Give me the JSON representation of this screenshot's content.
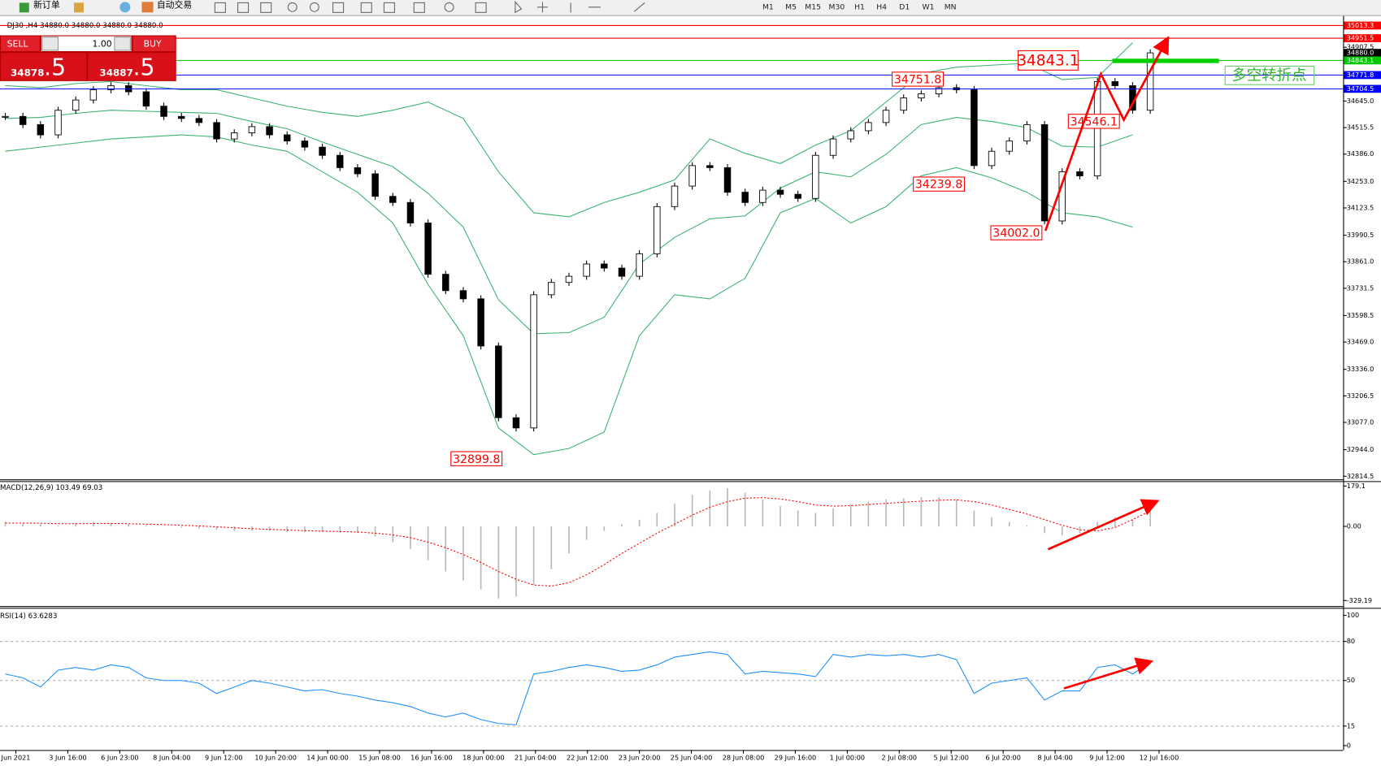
{
  "toolbar": {
    "new_order": "新订单",
    "auto_trading": "自动交易",
    "timeframes": [
      "M1",
      "M5",
      "M15",
      "M30",
      "H1",
      "H4",
      "D1",
      "W1",
      "MN"
    ]
  },
  "trade_panel": {
    "sell": "SELL",
    "buy": "BUY",
    "volume": "1.00",
    "sell_price": "34878",
    "sell_fraction": ".5",
    "buy_price": "34887",
    "buy_fraction": ".5"
  },
  "chart_data": [
    {
      "type": "candlestick",
      "title": "DJ30 ,H4  34880.0 34880.0 34880.0 34880.0",
      "values": [
        34570,
        34530,
        34480,
        34600,
        34650,
        34700,
        34720,
        34690,
        34620,
        34570,
        34560,
        34540,
        34460,
        34490,
        34520,
        34480,
        34450,
        34420,
        34380,
        34320,
        34290,
        34180,
        34150,
        34050,
        33800,
        33720,
        33680,
        33450,
        33100,
        33050,
        33700,
        33760,
        33790,
        33850,
        33830,
        33790,
        33900,
        34130,
        34230,
        34330,
        34320,
        34200,
        34150,
        34210,
        34190,
        34170,
        34380,
        34460,
        34500,
        34540,
        34600,
        34660,
        34680,
        34710,
        34700,
        34330,
        34400,
        34450,
        34530,
        34060,
        34300,
        34280,
        34740,
        34720,
        34600,
        34880
      ],
      "color_up": "#ffffff",
      "color_down": "#000000",
      "bands": {
        "color": "#3cb371",
        "x": [
          0,
          2,
          4,
          6,
          8,
          10,
          12,
          14,
          16,
          18,
          20,
          22,
          24,
          26,
          28,
          30,
          32,
          34,
          36,
          38,
          40,
          42,
          44,
          46,
          48,
          50,
          52,
          54,
          56,
          58,
          60,
          62,
          64
        ],
        "upper": [
          34720,
          34710,
          34730,
          34740,
          34720,
          34700,
          34700,
          34660,
          34620,
          34590,
          34570,
          34600,
          34640,
          34560,
          34300,
          34100,
          34080,
          34150,
          34200,
          34260,
          34460,
          34390,
          34340,
          34430,
          34500,
          34640,
          34780,
          34810,
          34820,
          34830,
          34750,
          34760,
          34930
        ],
        "middle": [
          34560,
          34565,
          34585,
          34600,
          34595,
          34590,
          34585,
          34545,
          34510,
          34445,
          34385,
          34325,
          34195,
          34030,
          33675,
          33510,
          33515,
          33590,
          33850,
          33980,
          34070,
          34085,
          34220,
          34300,
          34275,
          34385,
          34530,
          34565,
          34545,
          34515,
          34425,
          34420,
          34480
        ],
        "lower": [
          34400,
          34420,
          34440,
          34460,
          34470,
          34480,
          34470,
          34430,
          34400,
          34300,
          34200,
          34050,
          33750,
          33500,
          33050,
          32920,
          32950,
          33030,
          33500,
          33700,
          33680,
          33780,
          34100,
          34170,
          34050,
          34130,
          34280,
          34320,
          34270,
          34200,
          34100,
          34080,
          34030
        ]
      },
      "xlim": [
        -0.3,
        75.95
      ],
      "ylim": [
        32797,
        35060
      ],
      "yticks": [
        34907.5,
        {
          "value": 34645,
          "label": "34645.0"
        },
        34515.5,
        {
          "value": 34386,
          "label": "34386.0"
        },
        {
          "value": 34253,
          "label": "34253.0"
        },
        34123.5,
        33990.5,
        {
          "value": 33861,
          "label": "33861.0"
        },
        33731.5,
        33598.5,
        {
          "value": 33469,
          "label": "33469.0"
        },
        {
          "value": 33336,
          "label": "33336.0"
        },
        33206.5,
        {
          "value": 33077,
          "label": "33077.0"
        },
        {
          "value": 32944,
          "label": "32944.0"
        },
        32814.5
      ],
      "levels": [
        {
          "value": 35013.3,
          "color": "#ff0000",
          "line": true
        },
        {
          "value": 34951.5,
          "color": "#ff0000",
          "line": true
        },
        {
          "value": 34880,
          "label": "34880.0",
          "color": "#000000",
          "line": false
        },
        {
          "value": 34843.1,
          "color": "#00c800",
          "line": true
        },
        {
          "value": 34771.8,
          "color": "#0000ff",
          "line": true
        },
        {
          "value": 34704.5,
          "color": "#0000ff",
          "line": true
        }
      ],
      "price_labels": [
        34843.1,
        34751.8,
        34546.1,
        34239.8,
        {
          "value": 34002,
          "label": "34002.0"
        },
        32899.8
      ],
      "annotation_text": "多空转折点"
    },
    {
      "type": "macd",
      "title": "MACD(12,26,9) 103.49 69.03",
      "xlim": [
        -0.3,
        75.95
      ],
      "ylim": [
        -352,
        199
      ],
      "yticks": [
        179.1,
        {
          "value": 0,
          "label": "0.00"
        },
        -329.19
      ],
      "series": [
        {
          "style": "histogram",
          "color": "#b8b8b8",
          "values": [
            20,
            15,
            10,
            5,
            15,
            20,
            15,
            10,
            5,
            0,
            -5,
            -10,
            -15,
            -20,
            -20,
            -20,
            -25,
            -25,
            -25,
            -28,
            -30,
            -45,
            -70,
            -100,
            -150,
            -200,
            -240,
            -280,
            -320,
            -310,
            -260,
            -190,
            -120,
            -60,
            -20,
            10,
            30,
            60,
            100,
            140,
            160,
            170,
            150,
            120,
            90,
            70,
            60,
            80,
            100,
            110,
            120,
            125,
            130,
            130,
            120,
            70,
            40,
            20,
            5,
            -30,
            -40,
            -30,
            20,
            40,
            30,
            103.49
          ]
        },
        {
          "style": "dashed",
          "color": "#ff0000",
          "values": [
            15,
            15,
            14,
            12,
            12,
            13,
            13,
            12,
            10,
            8,
            5,
            2,
            -2,
            -6,
            -10,
            -13,
            -16,
            -19,
            -21,
            -23,
            -25,
            -30,
            -38,
            -50,
            -70,
            -95,
            -125,
            -160,
            -200,
            -235,
            -260,
            -265,
            -250,
            -215,
            -170,
            -120,
            -75,
            -30,
            10,
            50,
            85,
            110,
            125,
            128,
            122,
            110,
            95,
            90,
            92,
            97,
            102,
            107,
            112,
            116,
            118,
            110,
            95,
            75,
            55,
            30,
            5,
            -15,
            -20,
            -5,
            30,
            69.03
          ]
        }
      ]
    },
    {
      "type": "line",
      "title": "RSI(14) 63.6283",
      "xlim": [
        -0.3,
        75.95
      ],
      "ylim": [
        0,
        100
      ],
      "yticks": [
        100,
        80,
        50,
        15,
        0
      ],
      "color": "#1e90ff",
      "values": [
        55,
        52,
        45,
        58,
        60,
        58,
        62,
        60,
        52,
        50,
        50,
        48,
        40,
        45,
        50,
        48,
        45,
        42,
        43,
        40,
        38,
        35,
        33,
        30,
        25,
        22,
        25,
        20,
        17,
        16,
        55,
        57,
        60,
        62,
        60,
        57,
        58,
        62,
        68,
        70,
        72,
        70,
        55,
        57,
        56,
        55,
        53,
        70,
        68,
        70,
        69,
        70,
        68,
        70,
        66,
        40,
        48,
        50,
        52,
        35,
        42,
        42,
        60,
        62,
        55,
        63.6283
      ],
      "xticks": [
        {
          "value": 0.6,
          "label": "Jun 2021"
        },
        {
          "value": 3.55,
          "label": "3 Jun 16:00"
        },
        {
          "value": 6.5,
          "label": "6 Jun 23:00"
        },
        {
          "value": 9.45,
          "label": "8 Jun 04:00"
        },
        {
          "value": 12.4,
          "label": "9 Jun 12:00"
        },
        {
          "value": 15.35,
          "label": "10 Jun 20:00"
        },
        {
          "value": 18.3,
          "label": "14 Jun 00:00"
        },
        {
          "value": 21.25,
          "label": "15 Jun 08:00"
        },
        {
          "value": 24.2,
          "label": "16 Jun 16:00"
        },
        {
          "value": 27.15,
          "label": "18 Jun 00:00"
        },
        {
          "value": 30.1,
          "label": "21 Jun 04:00"
        },
        {
          "value": 33.05,
          "label": "22 Jun 12:00"
        },
        {
          "value": 36,
          "label": "23 Jun 20:00"
        },
        {
          "value": 38.95,
          "label": "25 Jun 04:00"
        },
        {
          "value": 41.9,
          "label": "28 Jun 08:00"
        },
        {
          "value": 44.85,
          "label": "29 Jun 16:00"
        },
        {
          "value": 47.8,
          "label": "1 Jul 00:00"
        },
        {
          "value": 50.75,
          "label": "2 Jul 08:00"
        },
        {
          "value": 53.7,
          "label": "5 Jul 12:00"
        },
        {
          "value": 56.65,
          "label": "6 Jul 20:00"
        },
        {
          "value": 59.6,
          "label": "8 Jul 04:00"
        },
        {
          "value": 62.55,
          "label": "9 Jul 12:00"
        },
        {
          "value": 65.5,
          "label": "12 Jul 16:00"
        }
      ]
    }
  ]
}
